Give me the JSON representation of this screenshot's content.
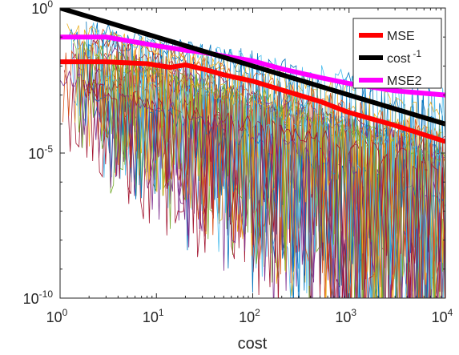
{
  "chart_data": {
    "type": "line",
    "title": "",
    "xlabel": "cost",
    "ylabel": "",
    "xscale": "log",
    "yscale": "log",
    "xlim": [
      1,
      10000
    ],
    "ylim": [
      1e-10,
      1
    ],
    "grid": false,
    "legend_position": "top-right",
    "x_ticks": [
      {
        "base": "10",
        "exp": "0"
      },
      {
        "base": "10",
        "exp": "1"
      },
      {
        "base": "10",
        "exp": "2"
      },
      {
        "base": "10",
        "exp": "3"
      },
      {
        "base": "10",
        "exp": "4"
      }
    ],
    "y_ticks": [
      {
        "base": "10",
        "exp": "0"
      },
      {
        "base": "10",
        "exp": "-5"
      },
      {
        "base": "10",
        "exp": "-10"
      }
    ],
    "series": [
      {
        "name": "MSE",
        "color": "#ff0000",
        "x": [
          1,
          3,
          8,
          14,
          20,
          30,
          50,
          100,
          200,
          500,
          1000,
          3000,
          10000
        ],
        "y": [
          0.014,
          0.014,
          0.012,
          0.009,
          0.011,
          0.008,
          0.005,
          0.003,
          0.0015,
          0.0006,
          0.00025,
          9e-05,
          2.5e-05
        ]
      },
      {
        "name": "cost",
        "name_exp": "-1",
        "color": "#000000",
        "x": [
          1,
          10000
        ],
        "y": [
          1,
          0.0001
        ]
      },
      {
        "name": "MSE2",
        "color": "#ff00ff",
        "x": [
          1,
          3,
          10,
          20,
          30,
          50,
          100,
          200,
          500,
          1000,
          3000,
          10000
        ],
        "y": [
          0.1,
          0.1,
          0.05,
          0.035,
          0.03,
          0.022,
          0.015,
          0.008,
          0.004,
          0.0025,
          0.0014,
          0.001
        ]
      }
    ],
    "background_traces": {
      "count": 28,
      "palette": [
        "#0072bd",
        "#d95319",
        "#edb120",
        "#7e2f8e",
        "#77ac30",
        "#4dbeee",
        "#a2142f"
      ]
    }
  }
}
